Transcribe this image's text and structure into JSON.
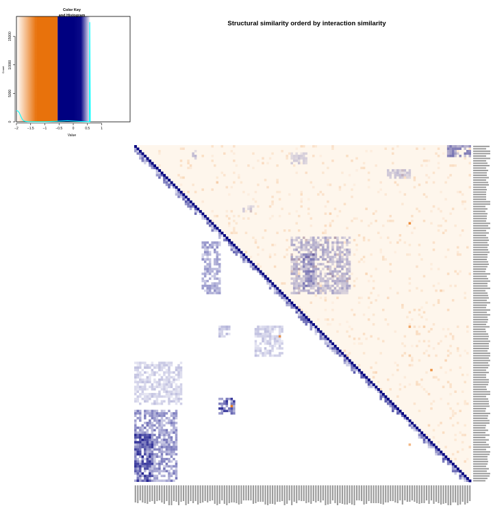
{
  "chart_data": [
    {
      "type": "heatmap",
      "title": "Structural similarity orderd by interaction similarity",
      "description_of_content": "",
      "matrix_size": 140,
      "diagonal_color": "#000080",
      "upper_triangle_color": "#E8720C",
      "lower_triangle_color": "#000080",
      "colors": {
        "orange": "#E8720C",
        "navy": "#000080",
        "cyan": "#00FFFF",
        "white": "#FFFFFF"
      },
      "off_diagonal_clusters": [
        {
          "row_range": [
            0,
            5
          ],
          "col_range": [
            130,
            140
          ],
          "level": 0.55
        },
        {
          "row_range": [
            2,
            6
          ],
          "col_range": [
            24,
            26
          ],
          "level": 0.3
        },
        {
          "row_range": [
            3,
            8
          ],
          "col_range": [
            65,
            72
          ],
          "level": 0.2
        },
        {
          "row_range": [
            10,
            14
          ],
          "col_range": [
            105,
            115
          ],
          "level": 0.25
        },
        {
          "row_range": [
            25,
            28
          ],
          "col_range": [
            45,
            50
          ],
          "level": 0.2
        },
        {
          "row_range": [
            40,
            62
          ],
          "col_range": [
            28,
            36
          ],
          "level": 0.45
        },
        {
          "row_range": [
            38,
            62
          ],
          "col_range": [
            65,
            90
          ],
          "level": 0.35
        },
        {
          "row_range": [
            45,
            60
          ],
          "col_range": [
            70,
            75
          ],
          "level": 0.4
        },
        {
          "row_range": [
            75,
            80
          ],
          "col_range": [
            35,
            40
          ],
          "level": 0.3
        },
        {
          "row_range": [
            75,
            88
          ],
          "col_range": [
            50,
            62
          ],
          "level": 0.25
        },
        {
          "row_range": [
            90,
            108
          ],
          "col_range": [
            0,
            20
          ],
          "level": 0.25
        },
        {
          "row_range": [
            105,
            112
          ],
          "col_range": [
            35,
            42
          ],
          "level": 0.85
        },
        {
          "row_range": [
            110,
            140
          ],
          "col_range": [
            0,
            18
          ],
          "level": 0.55
        },
        {
          "row_range": [
            120,
            140
          ],
          "col_range": [
            0,
            8
          ],
          "level": 0.75
        }
      ],
      "upper_hotspots": [
        {
          "row": 32,
          "col": 114,
          "level": 0.8
        },
        {
          "row": 79,
          "col": 60,
          "level": 0.7
        },
        {
          "row": 108,
          "col": 40,
          "level": 0.9
        },
        {
          "row": 75,
          "col": 114,
          "level": 0.6
        },
        {
          "row": 93,
          "col": 123,
          "level": 0.7
        },
        {
          "row": 124,
          "col": 114,
          "level": 0.5
        }
      ]
    },
    {
      "type": "histogram",
      "title": "Color Key\nand Histogram",
      "title_lines": [
        "Color Key",
        "and Histogram"
      ],
      "xlabel": "Value",
      "ylabel": "Count",
      "xlim": [
        -2.0,
        2.0
      ],
      "ylim": [
        0,
        18500
      ],
      "x_ticks": [
        -2,
        -1.5,
        -1,
        -0.5,
        0,
        0.5,
        1
      ],
      "x_tick_labels": [
        "−2",
        "−1.5",
        "−1",
        "−0.5",
        "0",
        "0.5",
        "1"
      ],
      "y_ticks": [
        0,
        5000,
        10000,
        15000
      ],
      "y_tick_labels": [
        "0",
        "5000",
        "10000",
        "15000"
      ],
      "color_bands": [
        {
          "from": -2.0,
          "to": -1.3,
          "color_start": "#FFFFFF",
          "color_end": "#E8720C"
        },
        {
          "from": -1.3,
          "to": -0.55,
          "color_start": "#E8720C",
          "color_end": "#E8720C"
        },
        {
          "from": -0.55,
          "to": 0.0,
          "color_start": "#000080",
          "color_end": "#000080"
        },
        {
          "from": 0.0,
          "to": 0.6,
          "color_start": "#000080",
          "color_end": "#FFFFFF"
        }
      ],
      "density_curve": {
        "x": [
          -2.0,
          -1.95,
          -1.9,
          -1.85,
          -1.8,
          -1.75,
          -1.7,
          -1.6,
          -1.4,
          -1.0,
          -0.6,
          -0.2,
          0.2,
          0.5,
          0.57,
          0.58,
          0.6
        ],
        "y": [
          2000,
          1900,
          1600,
          1000,
          500,
          200,
          100,
          40,
          20,
          20,
          100,
          200,
          80,
          20,
          10,
          17500,
          0
        ]
      }
    }
  ]
}
